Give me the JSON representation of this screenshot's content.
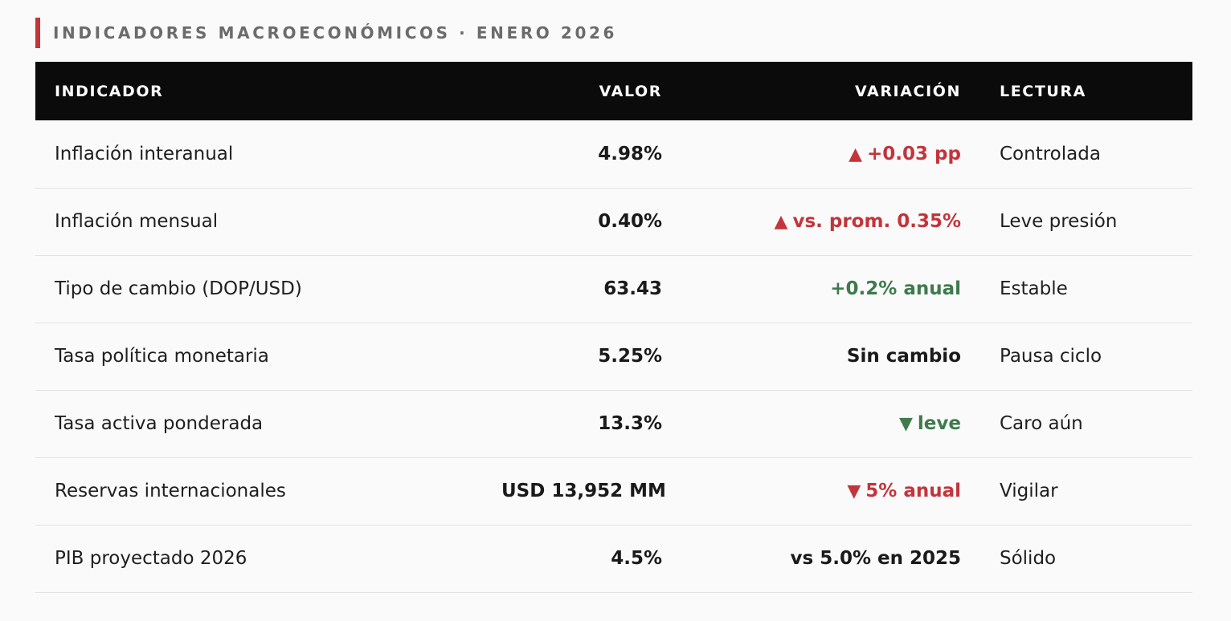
{
  "title": "INDICADORES MACROECONÓMICOS · ENERO 2026",
  "colors": {
    "accent": "#c3343b",
    "up_bad": "#c3343b",
    "positive": "#3f7a4d",
    "header_bg": "#0b0b0b"
  },
  "table": {
    "headers": {
      "indicador": "INDICADOR",
      "valor": "VALOR",
      "variacion": "VARIACIÓN",
      "lectura": "LECTURA"
    },
    "rows": [
      {
        "indicador": "Inflación interanual",
        "valor": "4.98%",
        "arrow": "▲",
        "arrow_icon": "triangle-up-icon",
        "variacion": "+0.03 pp",
        "tone": "red",
        "lectura": "Controlada"
      },
      {
        "indicador": "Inflación mensual",
        "valor": "0.40%",
        "arrow": "▲",
        "arrow_icon": "triangle-up-icon",
        "variacion": "vs. prom. 0.35%",
        "tone": "red",
        "lectura": "Leve presión"
      },
      {
        "indicador": "Tipo de cambio (DOP/USD)",
        "valor": "63.43",
        "arrow": "",
        "arrow_icon": "",
        "variacion": "+0.2% anual",
        "tone": "green",
        "lectura": "Estable"
      },
      {
        "indicador": "Tasa política monetaria",
        "valor": "5.25%",
        "arrow": "",
        "arrow_icon": "",
        "variacion": "Sin cambio",
        "tone": "dark",
        "lectura": "Pausa ciclo"
      },
      {
        "indicador": "Tasa activa ponderada",
        "valor": "13.3%",
        "arrow": "▼",
        "arrow_icon": "triangle-down-icon",
        "variacion": "leve",
        "tone": "green",
        "lectura": "Caro aún"
      },
      {
        "indicador": "Reservas internacionales",
        "valor": "USD 13,952 MM",
        "arrow": "▼",
        "arrow_icon": "triangle-down-icon",
        "variacion": "5% anual",
        "tone": "red",
        "lectura": "Vigilar"
      },
      {
        "indicador": "PIB proyectado 2026",
        "valor": "4.5%",
        "arrow": "",
        "arrow_icon": "",
        "variacion": "vs 5.0% en 2025",
        "tone": "dark",
        "lectura": "Sólido"
      }
    ]
  }
}
